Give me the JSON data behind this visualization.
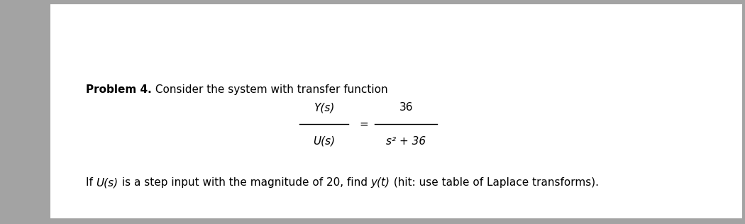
{
  "background_color": "#a3a3a3",
  "panel_color": "#ffffff",
  "problem_bold": "Problem 4.",
  "problem_normal": " Consider the system with transfer function",
  "numerator_Y": "Y(s)",
  "numerator_36": "36",
  "denominator_U": "U(s)",
  "denominator_s2": "s² + 36",
  "bottom_segments": [
    [
      "If ",
      false
    ],
    [
      "U(s)",
      true
    ],
    [
      " is a step input with the magnitude of 20, find ",
      false
    ],
    [
      "y(t)",
      true
    ],
    [
      " (hit: use table of Laplace transforms).",
      false
    ]
  ],
  "font_size": 11,
  "text_color": "#000000"
}
